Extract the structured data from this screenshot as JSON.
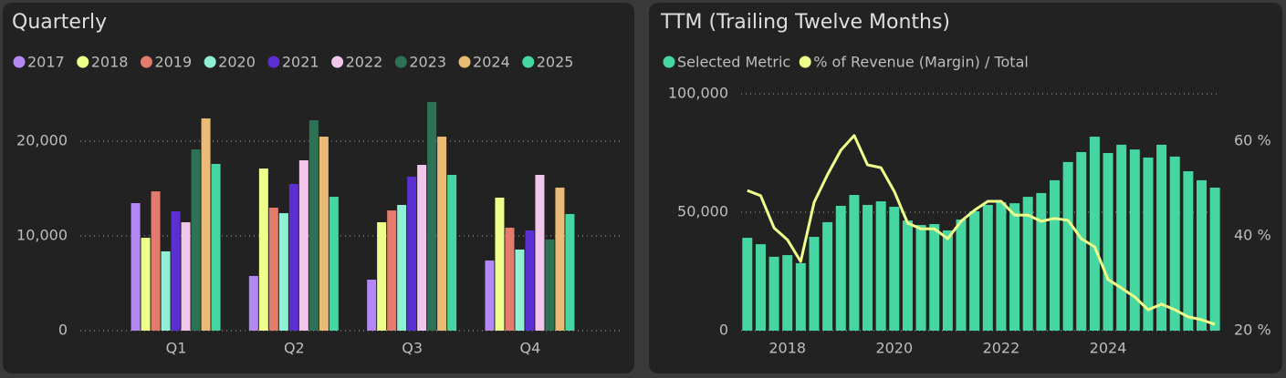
{
  "chart_data": [
    {
      "type": "bar",
      "title": "Quarterly",
      "categories": [
        "Q1",
        "Q2",
        "Q3",
        "Q4"
      ],
      "series": [
        {
          "name": "2017",
          "color": "#b388f5",
          "values": [
            13460,
            5770,
            5380,
            7400
          ]
        },
        {
          "name": "2018",
          "color": "#eeff8a",
          "values": [
            9800,
            17110,
            11440,
            14040
          ]
        },
        {
          "name": "2019",
          "color": "#e37b6e",
          "values": [
            14700,
            12980,
            12690,
            10870
          ]
        },
        {
          "name": "2020",
          "color": "#8ff0d6",
          "values": [
            8370,
            12400,
            13270,
            8560
          ]
        },
        {
          "name": "2021",
          "color": "#5b2fd1",
          "values": [
            12600,
            15480,
            16250,
            10580
          ]
        },
        {
          "name": "2022",
          "color": "#f1c6ea",
          "values": [
            11440,
            17980,
            17500,
            16440
          ]
        },
        {
          "name": "2023",
          "color": "#2e7256",
          "values": [
            19130,
            22210,
            24130,
            9620
          ]
        },
        {
          "name": "2024",
          "color": "#e9bb74",
          "values": [
            22400,
            20480,
            20480,
            15100
          ]
        },
        {
          "name": "2025",
          "color": "#45d6a2",
          "values": [
            17600,
            14130,
            16440,
            12310
          ]
        }
      ],
      "ylim": [
        0,
        25000
      ],
      "yticks": [
        0,
        {
          "value": 10000,
          "label": "10,000"
        },
        {
          "value": 20000,
          "label": "20,000"
        }
      ],
      "grid": true,
      "legend": "top"
    },
    {
      "type": "combo",
      "title": "TTM (Trailing Twelve Months)",
      "x": [
        2017.25,
        2017.5,
        2017.75,
        2018.0,
        2018.25,
        2018.5,
        2018.75,
        2019.0,
        2019.25,
        2019.5,
        2019.75,
        2020.0,
        2020.25,
        2020.5,
        2020.75,
        2021.0,
        2021.25,
        2021.5,
        2021.75,
        2022.0,
        2022.25,
        2022.5,
        2022.75,
        2023.0,
        2023.25,
        2023.5,
        2023.75,
        2024.0,
        2024.25,
        2024.5,
        2024.75,
        2025.0,
        2025.25,
        2025.5,
        2025.75,
        2026.0
      ],
      "series": [
        {
          "name": "Selected Metric",
          "type": "bar",
          "color": "#45d6a2",
          "values": [
            39200,
            36500,
            31200,
            31900,
            28500,
            39600,
            45800,
            52700,
            57300,
            53100,
            54600,
            52300,
            46500,
            44600,
            45000,
            42300,
            46900,
            50400,
            53100,
            54200,
            53800,
            56500,
            58100,
            63500,
            71200,
            75400,
            81900,
            75000,
            78500,
            76500,
            73100,
            78500,
            73500,
            67300,
            63500,
            60400
          ]
        },
        {
          "name": "% of Revenue (Margin) / Total",
          "type": "line",
          "axis": "y2",
          "color": "#eeff8a",
          "values": [
            49.6,
            48.5,
            41.7,
            39.2,
            34.6,
            47.1,
            52.9,
            58.1,
            61.2,
            55.0,
            54.4,
            49.4,
            42.7,
            41.5,
            41.5,
            39.4,
            43.1,
            45.4,
            47.3,
            47.3,
            44.4,
            44.4,
            43.1,
            43.7,
            43.3,
            39.4,
            37.7,
            30.8,
            29.0,
            27.1,
            24.4,
            25.6,
            24.4,
            22.9,
            22.3,
            21.3
          ]
        }
      ],
      "xlim": [
        2017.1,
        2026.1
      ],
      "xticks": [
        2018,
        2020,
        2022,
        2024
      ],
      "ylim": [
        0,
        100000
      ],
      "yticks": [
        0,
        {
          "value": 50000,
          "label": "50,000"
        },
        {
          "value": 100000,
          "label": "100,000"
        }
      ],
      "y2lim": [
        20,
        70
      ],
      "y2ticks": [
        {
          "value": 20,
          "label": "20 %"
        },
        {
          "value": 40,
          "label": "40 %"
        },
        {
          "value": 60,
          "label": "60 %"
        }
      ],
      "grid": true,
      "legend": "top"
    }
  ]
}
